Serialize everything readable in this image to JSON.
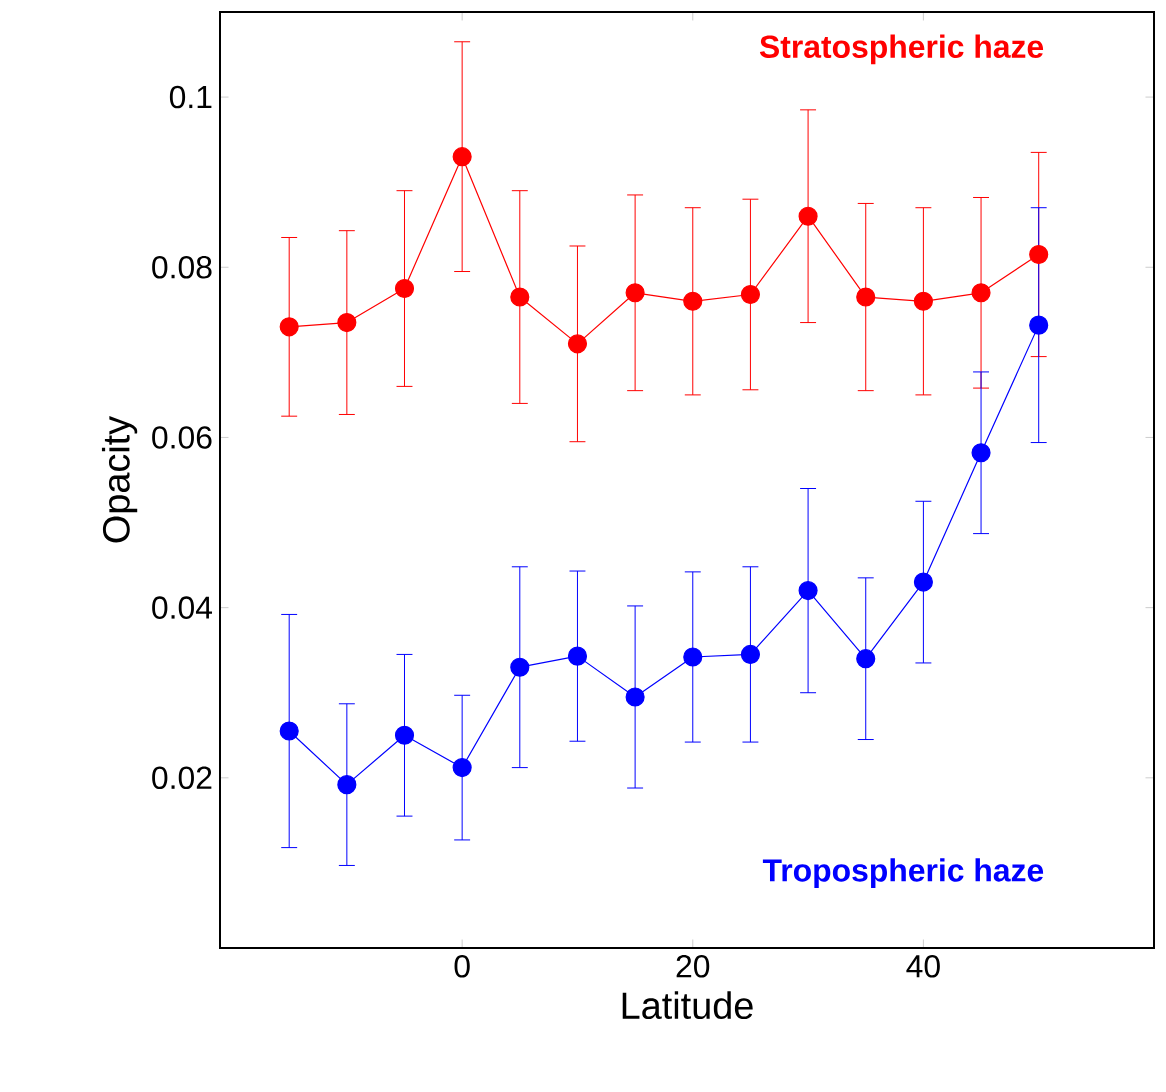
{
  "chart_data": {
    "type": "line",
    "xlabel": "Latitude",
    "ylabel": "Opacity",
    "x": [
      -15,
      -10,
      -5,
      0,
      5,
      10,
      15,
      20,
      25,
      30,
      35,
      40,
      45,
      50
    ],
    "series": [
      {
        "name": "Stratospheric haze",
        "color": "#ff0000",
        "values": [
          0.073,
          0.0735,
          0.0775,
          0.093,
          0.0765,
          0.071,
          0.077,
          0.076,
          0.0768,
          0.086,
          0.0765,
          0.076,
          0.077,
          0.0815
        ],
        "errors": [
          0.0105,
          0.0108,
          0.0115,
          0.0135,
          0.0125,
          0.0115,
          0.0115,
          0.011,
          0.0112,
          0.0125,
          0.011,
          0.011,
          0.0112,
          0.012
        ]
      },
      {
        "name": "Tropospheric haze",
        "color": "#0000ff",
        "values": [
          0.0255,
          0.0192,
          0.025,
          0.0212,
          0.033,
          0.0343,
          0.0295,
          0.0342,
          0.0345,
          0.042,
          0.034,
          0.043,
          0.0582,
          0.0732
        ],
        "errors": [
          0.0137,
          0.0095,
          0.0095,
          0.0085,
          0.0118,
          0.01,
          0.0107,
          0.01,
          0.0103,
          0.012,
          0.0095,
          0.0095,
          0.0095,
          0.0138
        ]
      }
    ],
    "xlim": [
      -21,
      60
    ],
    "ylim": [
      0,
      0.11
    ],
    "xticks": [
      0,
      20,
      40
    ],
    "yticks": [
      0.02,
      0.04,
      0.06,
      0.08,
      0.1
    ],
    "marker": "circle",
    "line_style": "solid",
    "grid": false
  }
}
